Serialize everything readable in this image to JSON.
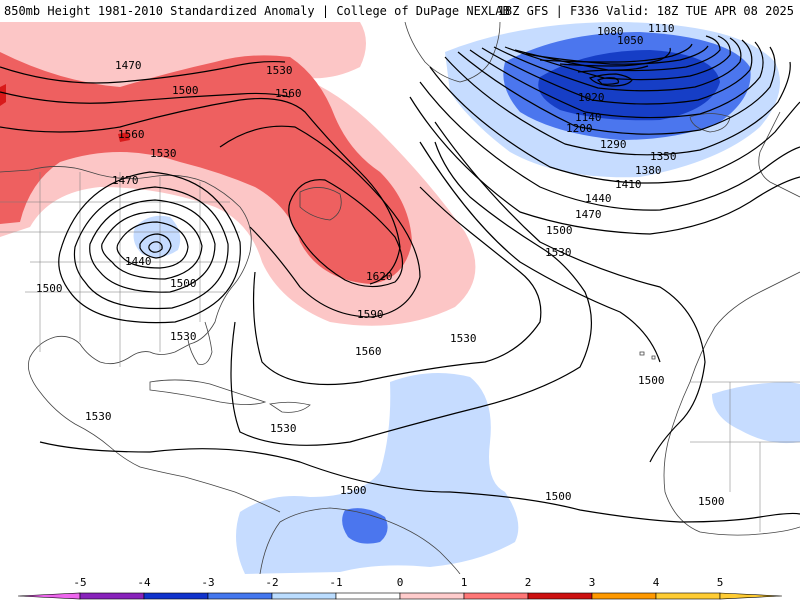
{
  "header": {
    "left": "850mb Height 1981-2010 Standardized Anomaly | College of DuPage NEXLAB",
    "right": "18Z GFS | F336 Valid: 18Z TUE APR 08 2025"
  },
  "contour_labels": [
    {
      "id": "c1470a",
      "text": "1470"
    },
    {
      "id": "c1500a",
      "text": "1500"
    },
    {
      "id": "c1530a",
      "text": "1530"
    },
    {
      "id": "c1560a",
      "text": "1560"
    },
    {
      "id": "c1560b",
      "text": "1560"
    },
    {
      "id": "c1530b",
      "text": "1530"
    },
    {
      "id": "c1470b",
      "text": "1470"
    },
    {
      "id": "c1440a",
      "text": "1440"
    },
    {
      "id": "c1500b",
      "text": "1500"
    },
    {
      "id": "c1500c",
      "text": "1500"
    },
    {
      "id": "c1530c",
      "text": "1530"
    },
    {
      "id": "c1620",
      "text": "1620"
    },
    {
      "id": "c1590",
      "text": "1590"
    },
    {
      "id": "c1560c",
      "text": "1560"
    },
    {
      "id": "c1530d",
      "text": "1530"
    },
    {
      "id": "c1530e",
      "text": "1530"
    },
    {
      "id": "c1530f",
      "text": "1530"
    },
    {
      "id": "c1500d",
      "text": "1500"
    },
    {
      "id": "c1500e",
      "text": "1500"
    },
    {
      "id": "c1500f",
      "text": "1500"
    },
    {
      "id": "c1500g",
      "text": "1500"
    },
    {
      "id": "c1500h",
      "text": "1500"
    },
    {
      "id": "c1530g",
      "text": "1530"
    },
    {
      "id": "c1470c",
      "text": "1470"
    },
    {
      "id": "c1440b",
      "text": "1440"
    },
    {
      "id": "c1410",
      "text": "1410"
    },
    {
      "id": "c1380",
      "text": "1380"
    },
    {
      "id": "c1350",
      "text": "1350"
    },
    {
      "id": "c1290",
      "text": "1290"
    },
    {
      "id": "c1200",
      "text": "1200"
    },
    {
      "id": "c1140",
      "text": "1140"
    },
    {
      "id": "c1020",
      "text": "1020"
    },
    {
      "id": "c1080",
      "text": "1080"
    },
    {
      "id": "c1050",
      "text": "1050"
    },
    {
      "id": "c1110",
      "text": "1110"
    }
  ],
  "colorbar": {
    "labels": [
      "-5",
      "-4",
      "-3",
      "-2",
      "-1",
      "0",
      "1",
      "2",
      "3",
      "4",
      "5"
    ],
    "colors": [
      "#ee66ee",
      "#8822bb",
      "#1133cc",
      "#4477ee",
      "#bbddff",
      "#ffffff",
      "#ffcccc",
      "#ff7777",
      "#cc1111",
      "#ff9900",
      "#ffcc33"
    ]
  },
  "anomaly_colors": {
    "positive_light": "#fcc6c6",
    "positive_mid": "#ee6060",
    "positive_strong": "#d81a1a",
    "negative_light": "#c6dcff",
    "negative_mid": "#4b76ee",
    "negative_strong": "#163ec6"
  }
}
